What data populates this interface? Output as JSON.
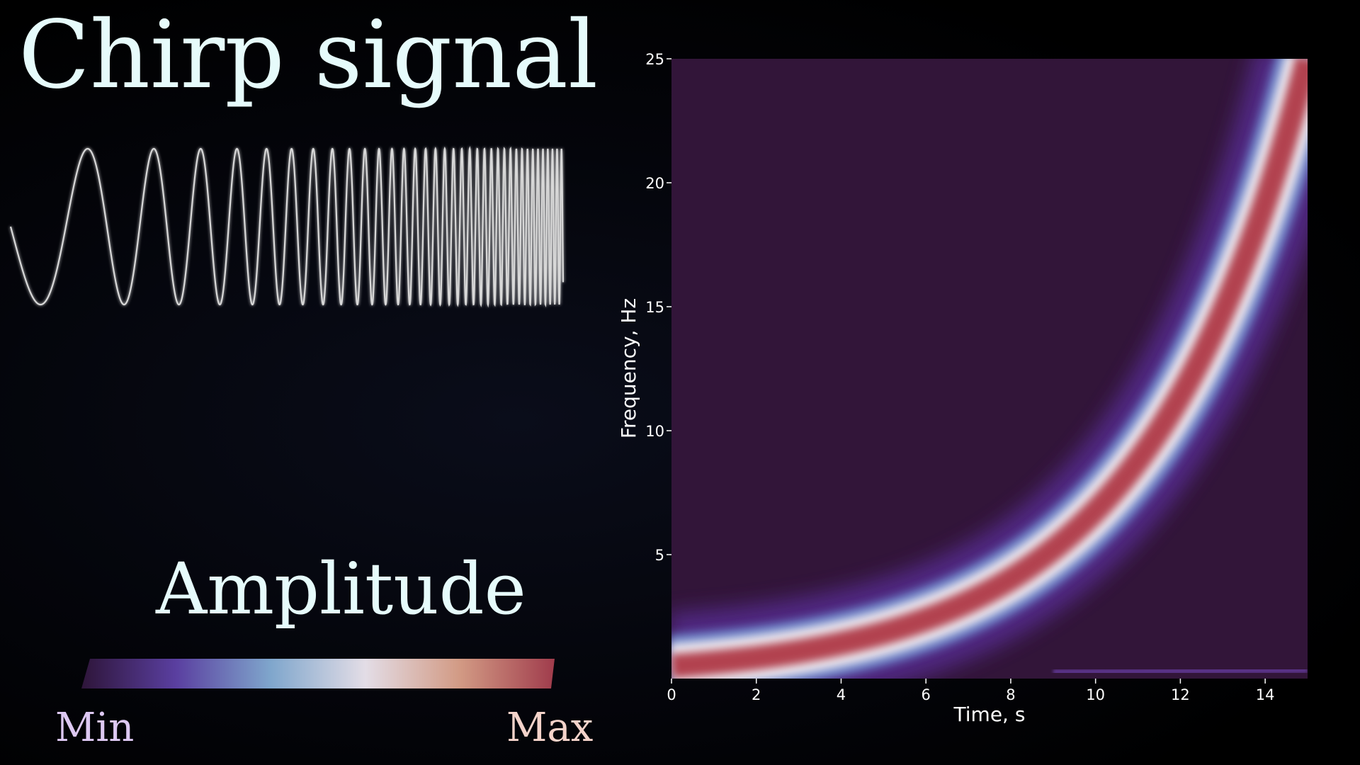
{
  "title": "Chirp signal",
  "amplitude_legend": {
    "title": "Amplitude",
    "min_label": "Min",
    "max_label": "Max",
    "colors": [
      "#2e1539",
      "#5a3fa0",
      "#7fa6cc",
      "#e3dde6",
      "#d29a84",
      "#a03c4c"
    ]
  },
  "waveform": {
    "color": "#d8d8d8",
    "f0_hz": 0.5,
    "f1_hz": 25,
    "duration_s": 15
  },
  "chart_data": {
    "type": "heatmap",
    "title": "",
    "xlabel": "Time, s",
    "ylabel": "Frequency, Hz",
    "xlim": [
      0,
      15
    ],
    "ylim": [
      0,
      25
    ],
    "xticks": [
      0,
      2,
      4,
      6,
      8,
      10,
      12,
      14
    ],
    "yticks": [
      5,
      10,
      15,
      20,
      25
    ],
    "background_color": "#321539",
    "ridge": {
      "description_values": "instantaneous frequency of chirp",
      "t": [
        0,
        1,
        2,
        3,
        4,
        5,
        6,
        7,
        8,
        9,
        10,
        11,
        12,
        13,
        14,
        15
      ],
      "f": [
        0.5,
        0.65,
        0.84,
        1.09,
        1.42,
        1.84,
        2.39,
        3.1,
        4.02,
        5.22,
        6.77,
        8.79,
        11.4,
        14.8,
        19.2,
        25.0
      ]
    }
  }
}
